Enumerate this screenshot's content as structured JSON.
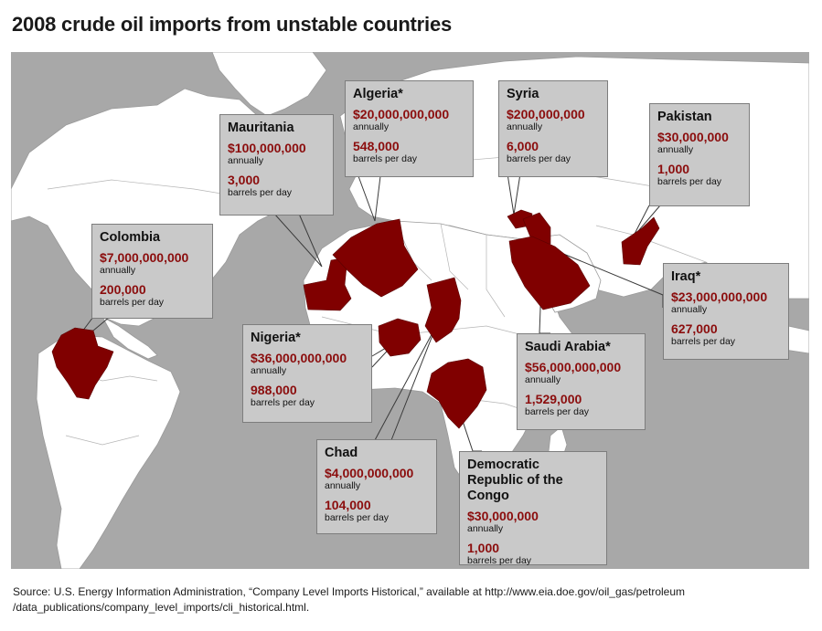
{
  "title": "2008 crude oil imports from unstable countries",
  "colors": {
    "country_fill": "#800000",
    "land": "#ffffff",
    "water": "#a8a8a8",
    "callout_bg": "#c9c9c9",
    "value_text": "#8b0d0d"
  },
  "countries": [
    {
      "name": "Mauritania",
      "value": "$100,000,000",
      "value_unit": "annually",
      "barrels": "3,000",
      "barrels_unit": "barrels per day"
    },
    {
      "name": "Algeria*",
      "value": "$20,000,000,000",
      "value_unit": "annually",
      "barrels": "548,000",
      "barrels_unit": "barrels per day"
    },
    {
      "name": "Syria",
      "value": "$200,000,000",
      "value_unit": "annually",
      "barrels": "6,000",
      "barrels_unit": "barrels per day"
    },
    {
      "name": "Pakistan",
      "value": "$30,000,000",
      "value_unit": "annually",
      "barrels": "1,000",
      "barrels_unit": "barrels per day"
    },
    {
      "name": "Colombia",
      "value": "$7,000,000,000",
      "value_unit": "annually",
      "barrels": "200,000",
      "barrels_unit": "barrels per day"
    },
    {
      "name": "Nigeria*",
      "value": "$36,000,000,000",
      "value_unit": "annually",
      "barrels": "988,000",
      "barrels_unit": "barrels per day"
    },
    {
      "name": "Iraq*",
      "value": "$23,000,000,000",
      "value_unit": "annually",
      "barrels": "627,000",
      "barrels_unit": "barrels per day"
    },
    {
      "name": "Saudi Arabia*",
      "value": "$56,000,000,000",
      "value_unit": "annually",
      "barrels": "1,529,000",
      "barrels_unit": "barrels per day"
    },
    {
      "name": "Chad",
      "value": "$4,000,000,000",
      "value_unit": "annually",
      "barrels": "104,000",
      "barrels_unit": "barrels per day"
    },
    {
      "name": "Democratic Republic of the Congo",
      "value": "$30,000,000",
      "value_unit": "annually",
      "barrels": "1,000",
      "barrels_unit": "barrels per day"
    }
  ],
  "source": {
    "line1": "Source: U.S. Energy Information Administration, “Company Level Imports Historical,” available at http://www.eia.doe.gov/oil_gas/petroleum",
    "line2": "/data_publications/company_level_imports/cli_historical.html."
  }
}
